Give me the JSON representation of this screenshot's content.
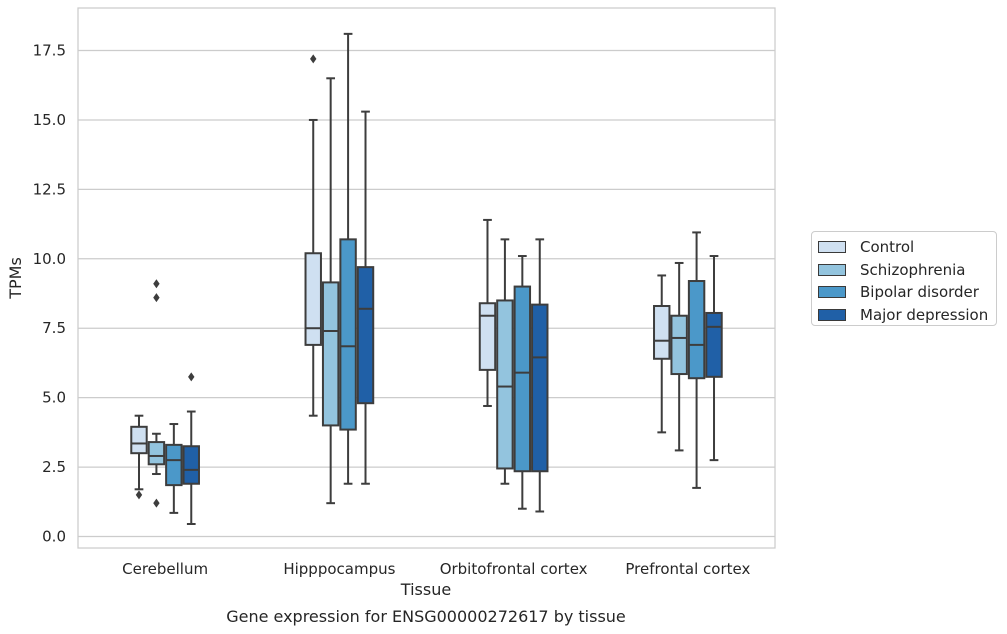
{
  "chart_data": {
    "type": "boxplot",
    "title": "",
    "xlabel": "Tissue",
    "ylabel": "TPMs",
    "caption": "Gene expression for ENSG00000272617 by tissue",
    "ylim": [
      -0.4,
      19
    ],
    "yticks": [
      "0.0",
      "2.5",
      "5.0",
      "7.5",
      "10.0",
      "12.5",
      "15.0",
      "17.5"
    ],
    "grid": "horizontal",
    "legend_position": "right",
    "categories": [
      "Cerebellum",
      "Hipppocampus",
      "Orbitofrontal cortex",
      "Prefrontal cortex"
    ],
    "series": [
      {
        "name": "Control",
        "color": "#cfe0f1",
        "boxes": [
          {
            "whislo": 1.7,
            "q1": 3.0,
            "med": 3.35,
            "q3": 3.95,
            "whishi": 4.35,
            "fliers": [
              1.5
            ]
          },
          {
            "whislo": 4.35,
            "q1": 6.9,
            "med": 7.5,
            "q3": 10.2,
            "whishi": 15.0,
            "fliers": [
              17.2
            ]
          },
          {
            "whislo": 4.7,
            "q1": 6.0,
            "med": 7.95,
            "q3": 8.4,
            "whishi": 11.4,
            "fliers": []
          },
          {
            "whislo": 3.75,
            "q1": 6.4,
            "med": 7.05,
            "q3": 8.3,
            "whishi": 9.4,
            "fliers": []
          }
        ]
      },
      {
        "name": "Schizophrenia",
        "color": "#93c4de",
        "boxes": [
          {
            "whislo": 2.25,
            "q1": 2.6,
            "med": 2.9,
            "q3": 3.4,
            "whishi": 3.7,
            "fliers": [
              9.1,
              8.6,
              1.2
            ]
          },
          {
            "whislo": 1.2,
            "q1": 4.0,
            "med": 7.4,
            "q3": 9.15,
            "whishi": 16.5,
            "fliers": []
          },
          {
            "whislo": 1.9,
            "q1": 2.45,
            "med": 5.4,
            "q3": 8.5,
            "whishi": 10.7,
            "fliers": []
          },
          {
            "whislo": 3.1,
            "q1": 5.85,
            "med": 7.15,
            "q3": 7.95,
            "whishi": 9.85,
            "fliers": []
          }
        ]
      },
      {
        "name": "Bipolar disorder",
        "color": "#4b98c9",
        "boxes": [
          {
            "whislo": 0.85,
            "q1": 1.85,
            "med": 2.75,
            "q3": 3.3,
            "whishi": 4.05,
            "fliers": []
          },
          {
            "whislo": 1.9,
            "q1": 3.85,
            "med": 6.85,
            "q3": 10.7,
            "whishi": 18.1,
            "fliers": []
          },
          {
            "whislo": 1.0,
            "q1": 2.35,
            "med": 5.9,
            "q3": 9.0,
            "whishi": 10.1,
            "fliers": []
          },
          {
            "whislo": 1.75,
            "q1": 5.7,
            "med": 6.9,
            "q3": 9.2,
            "whishi": 10.95,
            "fliers": []
          }
        ]
      },
      {
        "name": "Major depression",
        "color": "#2060a7",
        "boxes": [
          {
            "whislo": 0.45,
            "q1": 1.9,
            "med": 2.4,
            "q3": 3.25,
            "whishi": 4.5,
            "fliers": [
              5.75
            ]
          },
          {
            "whislo": 1.9,
            "q1": 4.8,
            "med": 8.2,
            "q3": 9.7,
            "whishi": 15.3,
            "fliers": []
          },
          {
            "whislo": 0.9,
            "q1": 2.35,
            "med": 6.45,
            "q3": 8.35,
            "whishi": 10.7,
            "fliers": []
          },
          {
            "whislo": 2.75,
            "q1": 5.75,
            "med": 7.55,
            "q3": 8.05,
            "whishi": 10.1,
            "fliers": []
          }
        ]
      }
    ]
  }
}
